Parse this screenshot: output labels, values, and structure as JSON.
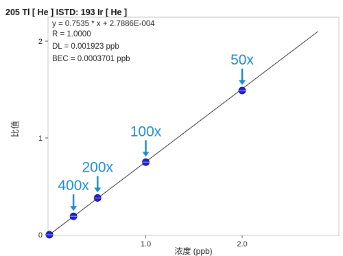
{
  "chart_data": {
    "type": "scatter",
    "title": "205 Tl [ He ] ISTD: 193 Ir [ He ]",
    "stats": {
      "equation": "y = 0.7535 * x  + 2.7886E-004",
      "r": "R =  1.0000",
      "dl": "DL = 0.001923 ppb",
      "bec": "BEC = 0.0003701 ppb"
    },
    "xlabel": "浓度 (ppb)",
    "ylabel": "比值",
    "xlim": [
      0,
      2.5
    ],
    "ylim": [
      0,
      2.1
    ],
    "xticks": [
      {
        "v": 1.0,
        "label": "1.0"
      },
      {
        "v": 2.0,
        "label": "2.0"
      }
    ],
    "yticks": [
      {
        "v": 0,
        "label": "0"
      },
      {
        "v": 1,
        "label": "1"
      },
      {
        "v": 2,
        "label": "2"
      }
    ],
    "fit": {
      "slope": 0.7535,
      "intercept": 0.00027886
    },
    "points": [
      {
        "x": 0.0,
        "y": 0.0
      },
      {
        "x": 0.25,
        "y": 0.19
      },
      {
        "x": 0.5,
        "y": 0.38
      },
      {
        "x": 1.0,
        "y": 0.75
      },
      {
        "x": 2.0,
        "y": 1.49
      }
    ],
    "annotations": [
      {
        "label": "400x",
        "x": 0.25,
        "y": 0.19
      },
      {
        "label": "200x",
        "x": 0.5,
        "y": 0.38
      },
      {
        "label": "100x",
        "x": 1.0,
        "y": 0.75
      },
      {
        "label": "50x",
        "x": 2.0,
        "y": 1.49
      }
    ],
    "grid": false,
    "colors": {
      "point": "#1f1fd6",
      "annotation": "#1a8ad4",
      "fit_line": "#333333"
    }
  }
}
